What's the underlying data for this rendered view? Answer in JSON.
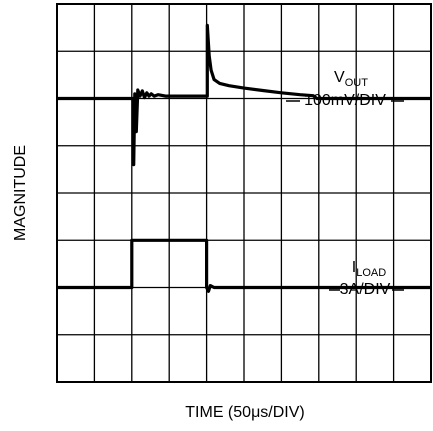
{
  "chart_data": {
    "type": "line",
    "xlabel_main": "TIME (50",
    "xlabel_mu": "μ",
    "xlabel_rest": "s/DIV)",
    "ylabel": "MAGNITUDE",
    "x_divisions": 10,
    "y_divisions": 8,
    "grid": true,
    "annotations": {
      "vout_main": "V",
      "vout_sub": "OUT",
      "vout_scale": "100mV/DIV",
      "iload_main": "I",
      "iload_sub": "LOAD",
      "iload_scale": "3A/DIV"
    },
    "series": [
      {
        "channel": "vout",
        "baseline_div": 2,
        "points": [
          [
            0,
            0
          ],
          [
            2.05,
            0
          ],
          [
            2.05,
            -1.4
          ],
          [
            2.08,
            0.1
          ],
          [
            2.12,
            -0.7
          ],
          [
            2.16,
            0.18
          ],
          [
            2.22,
            0.05
          ],
          [
            2.28,
            0.16
          ],
          [
            2.34,
            0.02
          ],
          [
            2.4,
            0.12
          ],
          [
            2.46,
            0.05
          ],
          [
            2.52,
            0.1
          ],
          [
            2.6,
            0.05
          ],
          [
            2.7,
            0.08
          ],
          [
            2.9,
            0.05
          ],
          [
            3.0,
            0.05
          ],
          [
            4.02,
            0.05
          ],
          [
            4.02,
            1.55
          ],
          [
            4.07,
            0.9
          ],
          [
            4.12,
            0.6
          ],
          [
            4.2,
            0.4
          ],
          [
            4.35,
            0.32
          ],
          [
            4.6,
            0.27
          ],
          [
            5.0,
            0.22
          ],
          [
            5.5,
            0.17
          ],
          [
            6.0,
            0.12
          ],
          [
            6.5,
            0.08
          ],
          [
            6.85,
            0.06
          ],
          [
            6.95,
            0
          ],
          [
            10,
            0
          ]
        ]
      },
      {
        "channel": "iload",
        "baseline_div": 6,
        "points": [
          [
            0,
            0
          ],
          [
            2.0,
            0
          ],
          [
            2.0,
            1.0
          ],
          [
            4.0,
            1.0
          ],
          [
            4.0,
            0
          ],
          [
            4.05,
            -0.08
          ],
          [
            4.1,
            0.04
          ],
          [
            4.2,
            0
          ],
          [
            10,
            0
          ]
        ]
      }
    ]
  }
}
